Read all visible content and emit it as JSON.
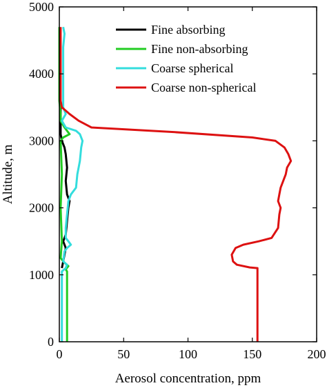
{
  "chart_data": {
    "type": "line",
    "xlabel": "Aerosol concentration, ppm",
    "ylabel": "Altitude, m",
    "xlim": [
      0,
      200
    ],
    "ylim": [
      0,
      5000
    ],
    "xticks": [
      0,
      50,
      100,
      150,
      200
    ],
    "yticks": [
      0,
      1000,
      2000,
      3000,
      4000,
      5000
    ],
    "grid": false,
    "legend_position": "top-right",
    "series": [
      {
        "name": "Fine absorbing",
        "color": "#000000",
        "points": [
          [
            2,
            1100
          ],
          [
            3,
            1200
          ],
          [
            4,
            1300
          ],
          [
            5,
            1400
          ],
          [
            3,
            1500
          ],
          [
            5,
            1600
          ],
          [
            6,
            1800
          ],
          [
            7,
            2000
          ],
          [
            8,
            2100
          ],
          [
            6,
            2200
          ],
          [
            5,
            2400
          ],
          [
            6,
            2600
          ],
          [
            5,
            2800
          ],
          [
            4,
            2900
          ],
          [
            2,
            3000
          ],
          [
            1,
            3100
          ],
          [
            1,
            3300
          ],
          [
            1,
            3600
          ]
        ]
      },
      {
        "name": "Fine non-absorbing",
        "color": "#22cc22",
        "points": [
          [
            6,
            0
          ],
          [
            6,
            1050
          ],
          [
            5,
            1080
          ],
          [
            7,
            1130
          ],
          [
            4,
            1180
          ],
          [
            1,
            1250
          ],
          [
            2,
            1500
          ],
          [
            1,
            2000
          ],
          [
            2,
            2500
          ],
          [
            1,
            3000
          ],
          [
            3,
            3050
          ],
          [
            8,
            3100
          ],
          [
            4,
            3200
          ],
          [
            1,
            3300
          ],
          [
            1,
            3400
          ],
          [
            0,
            3600
          ],
          [
            0,
            4200
          ],
          [
            0,
            4700
          ]
        ]
      },
      {
        "name": "Coarse spherical",
        "color": "#33dddd",
        "points": [
          [
            2,
            0
          ],
          [
            2,
            1050
          ],
          [
            5,
            1100
          ],
          [
            6,
            1150
          ],
          [
            3,
            1200
          ],
          [
            4,
            1350
          ],
          [
            6,
            1400
          ],
          [
            9,
            1450
          ],
          [
            7,
            1500
          ],
          [
            5,
            1550
          ],
          [
            5,
            1700
          ],
          [
            6,
            1900
          ],
          [
            7,
            2100
          ],
          [
            9,
            2200
          ],
          [
            13,
            2300
          ],
          [
            14,
            2500
          ],
          [
            16,
            2700
          ],
          [
            17,
            2900
          ],
          [
            18,
            3000
          ],
          [
            16,
            3100
          ],
          [
            13,
            3150
          ],
          [
            5,
            3200
          ],
          [
            2,
            3300
          ],
          [
            5,
            3400
          ],
          [
            3,
            3500
          ],
          [
            3,
            3600
          ],
          [
            3,
            4000
          ],
          [
            3,
            4400
          ],
          [
            4,
            4600
          ],
          [
            3,
            4700
          ]
        ]
      },
      {
        "name": "Coarse non-spherical",
        "color": "#dd1111",
        "points": [
          [
            154,
            0
          ],
          [
            154,
            1100
          ],
          [
            148,
            1110
          ],
          [
            138,
            1150
          ],
          [
            135,
            1200
          ],
          [
            134,
            1300
          ],
          [
            137,
            1400
          ],
          [
            143,
            1450
          ],
          [
            155,
            1500
          ],
          [
            165,
            1550
          ],
          [
            170,
            1700
          ],
          [
            171,
            1900
          ],
          [
            172,
            2000
          ],
          [
            170,
            2100
          ],
          [
            171,
            2200
          ],
          [
            172,
            2300
          ],
          [
            174,
            2400
          ],
          [
            176,
            2500
          ],
          [
            177,
            2600
          ],
          [
            180,
            2700
          ],
          [
            178,
            2800
          ],
          [
            175,
            2900
          ],
          [
            168,
            3000
          ],
          [
            150,
            3050
          ],
          [
            90,
            3130
          ],
          [
            25,
            3200
          ],
          [
            15,
            3300
          ],
          [
            8,
            3400
          ],
          [
            2,
            3500
          ],
          [
            1,
            3600
          ],
          [
            1,
            4000
          ],
          [
            1,
            4400
          ],
          [
            1,
            4700
          ]
        ]
      }
    ]
  }
}
